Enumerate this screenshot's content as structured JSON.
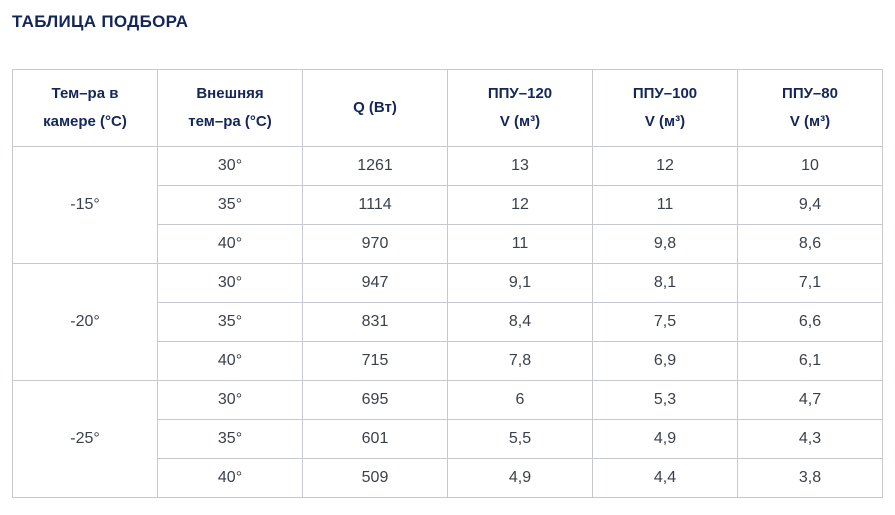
{
  "page": {
    "title": "ТАБЛИЦА ПОДБОРА"
  },
  "colors": {
    "title_text": "#12265a",
    "header_text": "#14265a",
    "body_text": "#3a414c",
    "border": "#c6cad0",
    "background": "#ffffff"
  },
  "table": {
    "headers": [
      {
        "line1": "Тем–ра в",
        "line2": "камере (°C)"
      },
      {
        "line1": "Внешняя",
        "line2": "тем–ра (°C)"
      },
      {
        "line1": "Q (Вт)",
        "line2": ""
      },
      {
        "line1": "ППУ–120",
        "line2": "V (м³)"
      },
      {
        "line1": "ППУ–100",
        "line2": "V (м³)"
      },
      {
        "line1": "ППУ–80",
        "line2": "V (м³)"
      }
    ],
    "groups": [
      {
        "camera_temp": "-15°",
        "rows": [
          {
            "external_temp": "30°",
            "q": "1261",
            "ppu120": "13",
            "ppu100": "12",
            "ppu80": "10"
          },
          {
            "external_temp": "35°",
            "q": "1114",
            "ppu120": "12",
            "ppu100": "11",
            "ppu80": "9,4"
          },
          {
            "external_temp": "40°",
            "q": "970",
            "ppu120": "11",
            "ppu100": "9,8",
            "ppu80": "8,6"
          }
        ]
      },
      {
        "camera_temp": "-20°",
        "rows": [
          {
            "external_temp": "30°",
            "q": "947",
            "ppu120": "9,1",
            "ppu100": "8,1",
            "ppu80": "7,1"
          },
          {
            "external_temp": "35°",
            "q": "831",
            "ppu120": "8,4",
            "ppu100": "7,5",
            "ppu80": "6,6"
          },
          {
            "external_temp": "40°",
            "q": "715",
            "ppu120": "7,8",
            "ppu100": "6,9",
            "ppu80": "6,1"
          }
        ]
      },
      {
        "camera_temp": "-25°",
        "rows": [
          {
            "external_temp": "30°",
            "q": "695",
            "ppu120": "6",
            "ppu100": "5,3",
            "ppu80": "4,7"
          },
          {
            "external_temp": "35°",
            "q": "601",
            "ppu120": "5,5",
            "ppu100": "4,9",
            "ppu80": "4,3"
          },
          {
            "external_temp": "40°",
            "q": "509",
            "ppu120": "4,9",
            "ppu100": "4,4",
            "ppu80": "3,8"
          }
        ]
      }
    ]
  },
  "chart_data": {
    "type": "table",
    "title": "ТАБЛИЦА ПОДБОРА",
    "columns": [
      "Тем–ра в камере (°C)",
      "Внешняя тем–ра (°C)",
      "Q (Вт)",
      "ППУ–120 V (м³)",
      "ППУ–100 V (м³)",
      "ППУ–80 V (м³)"
    ],
    "rows": [
      [
        "-15°",
        "30°",
        1261,
        13,
        12,
        10
      ],
      [
        "-15°",
        "35°",
        1114,
        12,
        11,
        9.4
      ],
      [
        "-15°",
        "40°",
        970,
        11,
        9.8,
        8.6
      ],
      [
        "-20°",
        "30°",
        947,
        9.1,
        8.1,
        7.1
      ],
      [
        "-20°",
        "35°",
        831,
        8.4,
        7.5,
        6.6
      ],
      [
        "-20°",
        "40°",
        715,
        7.8,
        6.9,
        6.1
      ],
      [
        "-25°",
        "30°",
        695,
        6,
        5.3,
        4.7
      ],
      [
        "-25°",
        "35°",
        601,
        5.5,
        4.9,
        4.3
      ],
      [
        "-25°",
        "40°",
        509,
        4.9,
        4.4,
        3.8
      ]
    ],
    "notes": "Decimal separator shown as comma in UI; camera temp cells merged over 3 rows each"
  }
}
